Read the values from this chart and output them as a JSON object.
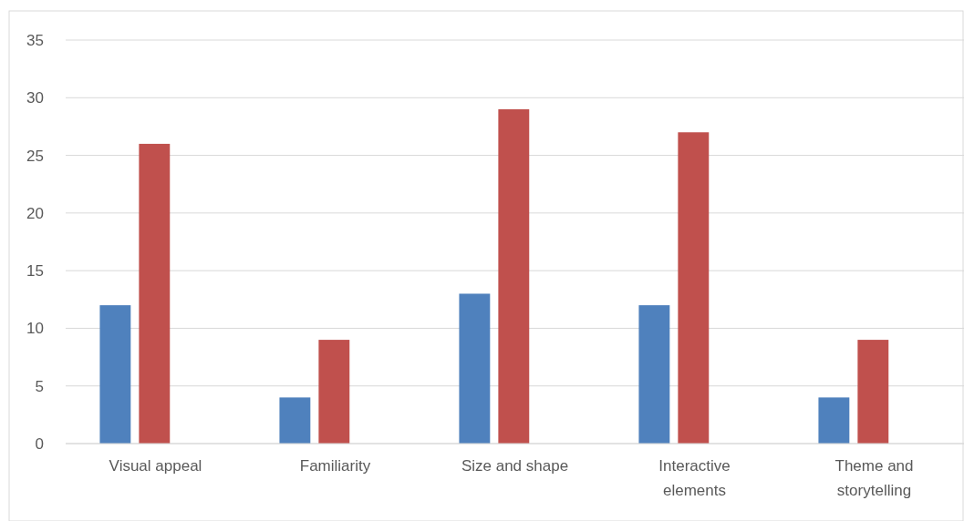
{
  "chart_data": {
    "type": "bar",
    "categories": [
      "Visual appeal",
      "Familiarity",
      "Size and shape",
      "Interactive elements",
      "Theme and storytelling"
    ],
    "series": [
      {
        "color": "#4f81bd",
        "values": [
          12,
          4,
          13,
          12,
          4
        ]
      },
      {
        "color": "#c0504d",
        "values": [
          26,
          9,
          29,
          27,
          9
        ]
      }
    ],
    "ylim": [
      0,
      35
    ],
    "yticks": [
      0,
      5,
      10,
      15,
      20,
      25,
      30,
      35
    ],
    "grid": "y"
  }
}
